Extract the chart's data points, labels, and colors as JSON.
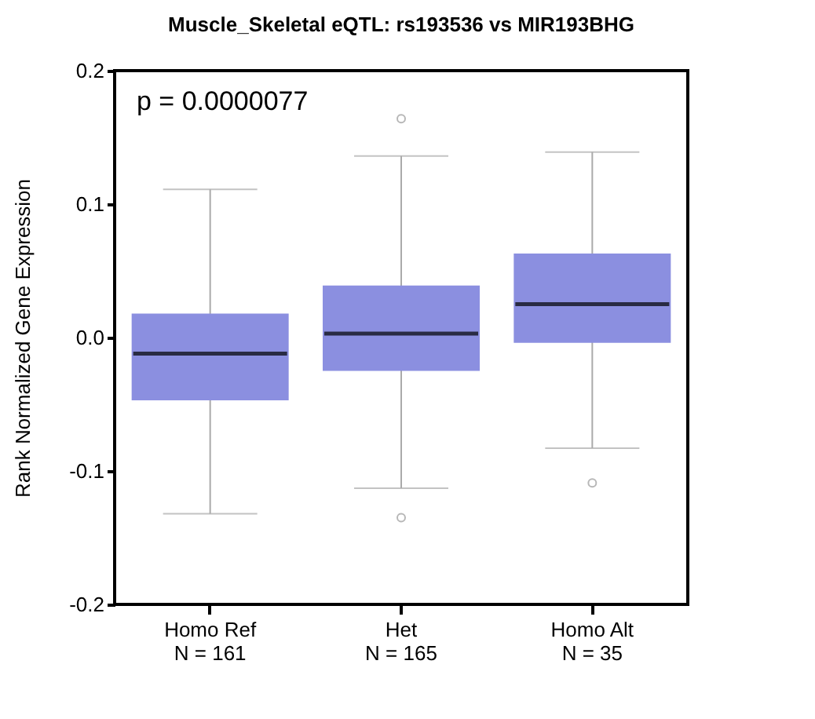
{
  "chart_data": {
    "type": "box",
    "title": "Muscle_Skeletal eQTL: rs193536 vs MIR193BHG",
    "ylabel": "Rank Normalized Gene Expression",
    "categories": [
      "Homo Ref\nN = 161",
      "Het\nN = 165",
      "Homo Alt\nN = 35"
    ],
    "color": "#8b8fe0",
    "boxes": [
      {
        "low": -0.132,
        "q1": -0.047,
        "median": -0.012,
        "q3": 0.018,
        "high": 0.111
      },
      {
        "low": -0.113,
        "q1": -0.025,
        "median": 0.003,
        "q3": 0.039,
        "high": 0.136,
        "outliers": [
          0.164,
          -0.135
        ]
      },
      {
        "low": -0.083,
        "q1": -0.004,
        "median": 0.025,
        "q3": 0.063,
        "high": 0.139,
        "outliers": [
          -0.109
        ]
      }
    ],
    "ylim": [
      -0.2,
      0.2
    ],
    "yticks": [
      {
        "value": -0.2,
        "label": "-0.2"
      },
      {
        "value": -0.1,
        "label": "-0.1"
      },
      {
        "value": 0,
        "label": "0.0"
      },
      {
        "value": 0.1,
        "label": "0.1"
      },
      {
        "value": 0.2,
        "label": "0.2"
      }
    ],
    "annotations": [
      "p = 0.0000077"
    ]
  }
}
